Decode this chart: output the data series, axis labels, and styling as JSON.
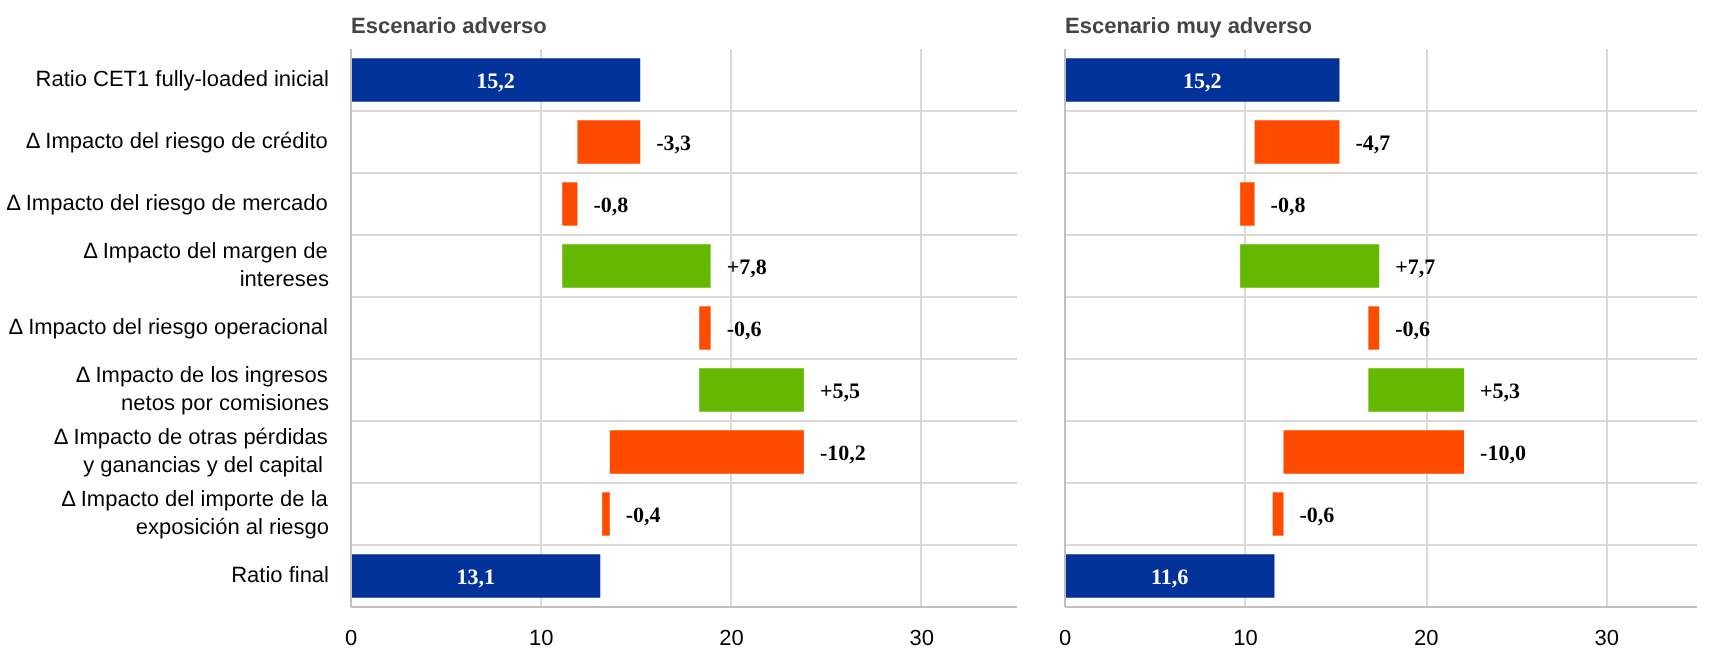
{
  "chart_data": [
    {
      "type": "bar",
      "orientation": "horizontal",
      "title": "Escenario adverso",
      "categories": [
        "Ratio CET1 fully-loaded inicial",
        "Δ Impacto del riesgo de crédito",
        "Δ Impacto del riesgo de mercado",
        "Δ Impacto del margen de intereses",
        "Δ Impacto del riesgo operacional",
        "Δ Impacto de los ingresos netos por comisiones",
        "Δ Impacto de otras pérdidas y ganancias  y del capital",
        "Δ Impacto del importe de la exposición al riesgo",
        "Ratio final"
      ],
      "values": [
        15.2,
        -3.3,
        -0.8,
        7.8,
        -0.6,
        5.5,
        -10.2,
        -0.4,
        13.1
      ],
      "base": [
        0,
        15.2,
        11.9,
        11.1,
        18.9,
        18.3,
        23.8,
        13.6,
        0
      ],
      "colors": [
        "#003299",
        "#ff4b00",
        "#ff4b00",
        "#65b800",
        "#ff4b00",
        "#65b800",
        "#ff4b00",
        "#ff4b00",
        "#003299"
      ],
      "value_labels": [
        "15,2",
        "-3,3",
        "-0,8",
        "+7,8",
        "-0,6",
        "+5,5",
        "-10,2",
        "-0,4",
        "13,1"
      ],
      "xlim": [
        0,
        35
      ],
      "xticks": [
        0,
        10,
        20,
        30
      ],
      "grid": true
    },
    {
      "type": "bar",
      "orientation": "horizontal",
      "title": "Escenario muy adverso",
      "categories": [
        "Ratio CET1 fully-loaded inicial",
        "Δ Impacto del riesgo de crédito",
        "Δ Impacto del riesgo de mercado",
        "Δ Impacto del margen de intereses",
        "Δ Impacto del riesgo operacional",
        "Δ Impacto de los ingresos netos por comisiones",
        "Δ Impacto de otras pérdidas y ganancias  y del capital",
        "Δ Impacto del importe de la exposición al riesgo",
        "Ratio final"
      ],
      "values": [
        15.2,
        -4.7,
        -0.8,
        7.7,
        -0.6,
        5.3,
        -10.0,
        -0.6,
        11.6
      ],
      "base": [
        0,
        15.2,
        10.5,
        9.7,
        17.4,
        16.8,
        22.1,
        12.1,
        0
      ],
      "colors": [
        "#003299",
        "#ff4b00",
        "#ff4b00",
        "#65b800",
        "#ff4b00",
        "#65b800",
        "#ff4b00",
        "#ff4b00",
        "#003299"
      ],
      "value_labels": [
        "15,2",
        "-4,7",
        "-0,8",
        "+7,7",
        "-0,6",
        "+5,3",
        "-10,0",
        "-0,6",
        "11,6"
      ],
      "xlim": [
        0,
        35
      ],
      "xticks": [
        0,
        10,
        20,
        30
      ],
      "grid": true,
      "tick_labels": "x"
    }
  ]
}
